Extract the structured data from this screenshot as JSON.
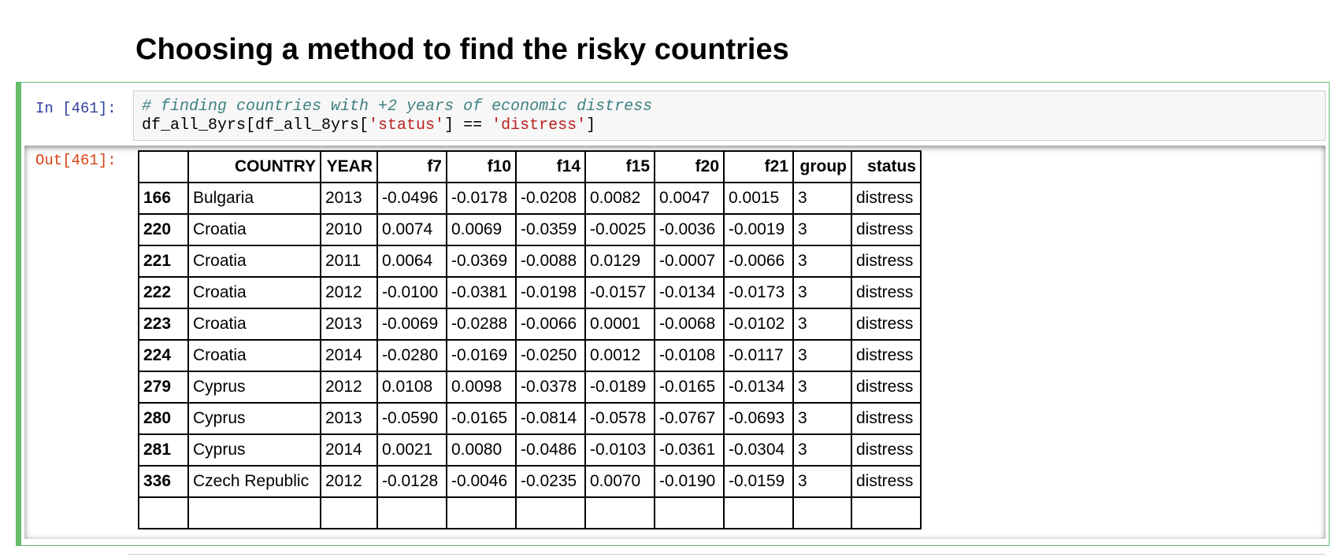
{
  "heading": "Choosing a method to find the risky countries",
  "input": {
    "prompt": "In [461]:",
    "comment": "# finding countries with +2 years of economic distress",
    "code": [
      "df_all_8yrs[df_all_8yrs[",
      "'status'",
      "] == ",
      "'distress'",
      "]"
    ]
  },
  "output": {
    "prompt": "Out[461]:",
    "table": {
      "columns": [
        "COUNTRY",
        "YEAR",
        "f7",
        "f10",
        "f14",
        "f15",
        "f20",
        "f21",
        "group",
        "status"
      ],
      "rows": [
        [
          "166",
          "Bulgaria",
          "2013",
          "-0.0496",
          "-0.0178",
          "-0.0208",
          "0.0082",
          "0.0047",
          "0.0015",
          "3",
          "distress"
        ],
        [
          "220",
          "Croatia",
          "2010",
          "0.0074",
          "0.0069",
          "-0.0359",
          "-0.0025",
          "-0.0036",
          "-0.0019",
          "3",
          "distress"
        ],
        [
          "221",
          "Croatia",
          "2011",
          "0.0064",
          "-0.0369",
          "-0.0088",
          "0.0129",
          "-0.0007",
          "-0.0066",
          "3",
          "distress"
        ],
        [
          "222",
          "Croatia",
          "2012",
          "-0.0100",
          "-0.0381",
          "-0.0198",
          "-0.0157",
          "-0.0134",
          "-0.0173",
          "3",
          "distress"
        ],
        [
          "223",
          "Croatia",
          "2013",
          "-0.0069",
          "-0.0288",
          "-0.0066",
          "0.0001",
          "-0.0068",
          "-0.0102",
          "3",
          "distress"
        ],
        [
          "224",
          "Croatia",
          "2014",
          "-0.0280",
          "-0.0169",
          "-0.0250",
          "0.0012",
          "-0.0108",
          "-0.0117",
          "3",
          "distress"
        ],
        [
          "279",
          "Cyprus",
          "2012",
          "0.0108",
          "0.0098",
          "-0.0378",
          "-0.0189",
          "-0.0165",
          "-0.0134",
          "3",
          "distress"
        ],
        [
          "280",
          "Cyprus",
          "2013",
          "-0.0590",
          "-0.0165",
          "-0.0814",
          "-0.0578",
          "-0.0767",
          "-0.0693",
          "3",
          "distress"
        ],
        [
          "281",
          "Cyprus",
          "2014",
          "0.0021",
          "0.0080",
          "-0.0486",
          "-0.0103",
          "-0.0361",
          "-0.0304",
          "3",
          "distress"
        ],
        [
          "336",
          "Czech Republic",
          "2012",
          "-0.0128",
          "-0.0046",
          "-0.0235",
          "0.0070",
          "-0.0190",
          "-0.0159",
          "3",
          "distress"
        ]
      ]
    }
  }
}
